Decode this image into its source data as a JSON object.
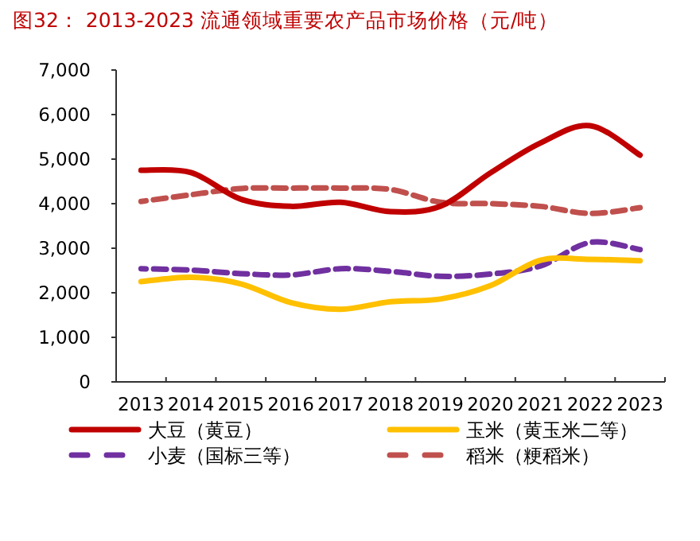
{
  "chart_data": {
    "type": "line",
    "title": "图32：  2013-2023 流通领域重要农产品市场价格（元/吨）",
    "categories": [
      "2013",
      "2014",
      "2015",
      "2016",
      "2017",
      "2018",
      "2019",
      "2020",
      "2021",
      "2022",
      "2023"
    ],
    "ylim": [
      0,
      7000
    ],
    "yticks": [
      {
        "value": 0,
        "label": "0"
      },
      {
        "value": 1000,
        "label": "1,000"
      },
      {
        "value": 2000,
        "label": "2,000"
      },
      {
        "value": 3000,
        "label": "3,000"
      },
      {
        "value": 4000,
        "label": "4,000"
      },
      {
        "value": 5000,
        "label": "5,000"
      },
      {
        "value": 6000,
        "label": "6,000"
      },
      {
        "value": 7000,
        "label": "7,000"
      }
    ],
    "grid": false,
    "legend": "bottom",
    "marker": "none",
    "series": [
      {
        "name": "大豆（黄豆）",
        "color": "#c00000",
        "line_style": "solid",
        "values": [
          4750,
          4700,
          4100,
          3940,
          4030,
          3820,
          3940,
          4690,
          5360,
          5750,
          5090
        ]
      },
      {
        "name": "玉米（黄玉米二等）",
        "color": "#ffc000",
        "line_style": "solid",
        "values": [
          2250,
          2350,
          2200,
          1780,
          1630,
          1800,
          1860,
          2160,
          2730,
          2750,
          2720
        ]
      },
      {
        "name": "小麦（国标三等）",
        "color": "#7030a0",
        "line_style": "dashed",
        "values": [
          2540,
          2510,
          2430,
          2400,
          2540,
          2480,
          2370,
          2420,
          2600,
          3130,
          2970
        ]
      },
      {
        "name": "稻米（粳稻米）",
        "color": "#c0504d",
        "line_style": "dashed",
        "values": [
          4050,
          4200,
          4340,
          4350,
          4350,
          4320,
          4030,
          4000,
          3940,
          3780,
          3910
        ]
      }
    ]
  }
}
